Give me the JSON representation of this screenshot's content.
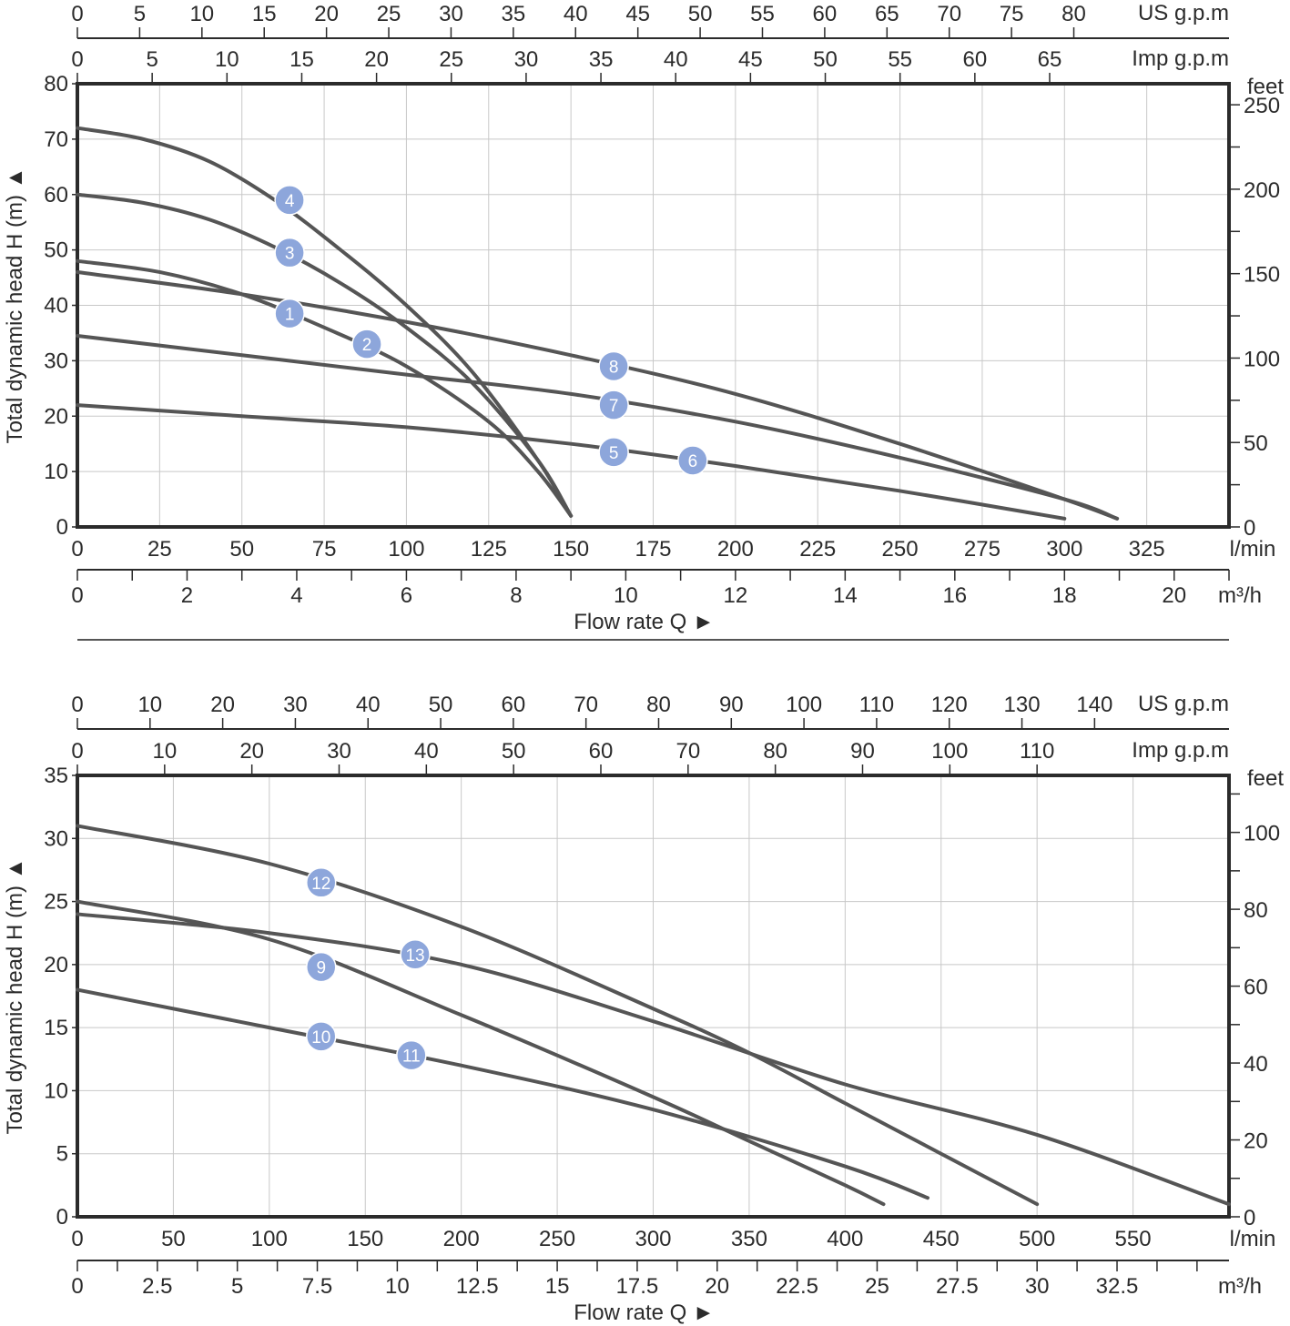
{
  "chart_data": [
    {
      "type": "line",
      "title": "",
      "x_label": "Flow rate Q ►",
      "y_label": "Total dynamic head H (m) ▲",
      "x_units": "l/min",
      "xlim": [
        0,
        350
      ],
      "ylim": [
        0,
        80
      ],
      "x_ticks": [
        0,
        25,
        50,
        75,
        100,
        125,
        150,
        175,
        200,
        225,
        250,
        275,
        300,
        325
      ],
      "y_ticks": [
        0,
        10,
        20,
        30,
        40,
        50,
        60,
        70,
        80
      ],
      "right_axis": {
        "label": "feet",
        "ticks": [
          0,
          50,
          100,
          150,
          200,
          250
        ]
      },
      "top_axis_us": {
        "label": "US g.p.m",
        "ticks": [
          0,
          5,
          10,
          15,
          20,
          25,
          30,
          35,
          40,
          45,
          50,
          55,
          60,
          65,
          70,
          75,
          80
        ]
      },
      "top_axis_imp": {
        "label": "Imp g.p.m",
        "ticks": [
          0,
          5,
          10,
          15,
          20,
          25,
          30,
          35,
          40,
          45,
          50,
          55,
          60,
          65
        ]
      },
      "bottom_axis_m3h": {
        "label": "m³/h",
        "ticks": [
          0,
          2,
          4,
          6,
          8,
          10,
          12,
          14,
          16,
          18,
          20
        ]
      },
      "series": [
        {
          "name": "4",
          "x": [
            0,
            20,
            40,
            60,
            80,
            100,
            120,
            140,
            150
          ],
          "y": [
            72,
            70,
            66,
            59,
            50,
            40,
            28,
            12,
            2
          ],
          "label_at": [
            64.5,
            59
          ]
        },
        {
          "name": "3",
          "x": [
            0,
            20,
            40,
            60,
            80,
            100,
            120,
            140,
            150
          ],
          "y": [
            60,
            58.5,
            55.5,
            50.5,
            44,
            36,
            26,
            12,
            2
          ],
          "label_at": [
            64.5,
            49.5
          ]
        },
        {
          "name": "1",
          "x": [
            0,
            25,
            50,
            75,
            100,
            125,
            140,
            150
          ],
          "y": [
            48,
            46,
            42,
            36,
            29,
            19,
            10,
            2
          ],
          "label_at": [
            64.5,
            38.5
          ]
        },
        {
          "name": "8",
          "x": [
            0,
            50,
            100,
            150,
            200,
            250,
            300,
            316
          ],
          "y": [
            46,
            42,
            37,
            31,
            24,
            15,
            5,
            1.5
          ],
          "label_at": [
            163,
            29
          ]
        },
        {
          "name": "7",
          "x": [
            0,
            50,
            100,
            150,
            200,
            250,
            300,
            316
          ],
          "y": [
            34.5,
            31,
            27.5,
            24,
            19,
            12.5,
            5,
            1.5
          ],
          "label_at": [
            163,
            22
          ]
        },
        {
          "name": "5",
          "x": [
            0,
            50,
            100,
            150,
            200,
            250,
            300
          ],
          "y": [
            22,
            20,
            18,
            15,
            11,
            6.5,
            1.5
          ],
          "label_at": [
            163,
            13.5
          ]
        }
      ],
      "extra_labels": [
        {
          "name": "2",
          "label_at": [
            88,
            33
          ]
        },
        {
          "name": "6",
          "label_at": [
            187,
            12
          ]
        }
      ]
    },
    {
      "type": "line",
      "title": "",
      "x_label": "Flow rate Q ►",
      "y_label": "Total dynamic head H (m) ▲",
      "x_units": "l/min",
      "xlim": [
        0,
        600
      ],
      "ylim": [
        0,
        35
      ],
      "x_ticks": [
        0,
        50,
        100,
        150,
        200,
        250,
        300,
        350,
        400,
        450,
        500,
        550
      ],
      "y_ticks": [
        0,
        5,
        10,
        15,
        20,
        25,
        30,
        35
      ],
      "right_axis": {
        "label": "feet",
        "ticks": [
          0,
          20,
          40,
          60,
          80,
          100
        ]
      },
      "top_axis_us": {
        "label": "US g.p.m",
        "ticks": [
          0,
          10,
          20,
          30,
          40,
          50,
          60,
          70,
          80,
          90,
          100,
          110,
          120,
          130,
          140
        ]
      },
      "top_axis_imp": {
        "label": "Imp g.p.m",
        "ticks": [
          0,
          10,
          20,
          30,
          40,
          50,
          60,
          70,
          80,
          90,
          100,
          110
        ]
      },
      "bottom_axis_m3h": {
        "label": "m³/h",
        "ticks": [
          0,
          2.5,
          5,
          7.5,
          10,
          12.5,
          15,
          17.5,
          20,
          22.5,
          25,
          27.5,
          30,
          32.5
        ]
      },
      "series": [
        {
          "name": "12",
          "x": [
            0,
            100,
            200,
            300,
            350,
            400,
            450,
            500
          ],
          "y": [
            31,
            28,
            23,
            16.5,
            13,
            9,
            5,
            1
          ]
        },
        {
          "name": "13",
          "x": [
            0,
            100,
            200,
            300,
            400,
            500,
            600
          ],
          "y": [
            24,
            22.5,
            20,
            15.5,
            10.5,
            6.5,
            1
          ]
        },
        {
          "name": "9",
          "x": [
            0,
            100,
            200,
            300,
            350,
            400,
            420
          ],
          "y": [
            25,
            22,
            16,
            9.5,
            6,
            2.5,
            1
          ]
        },
        {
          "name": "10",
          "x": [
            0,
            100,
            200,
            300,
            400,
            443
          ],
          "y": [
            18,
            15,
            12,
            8.5,
            4,
            1.5
          ]
        }
      ],
      "label_positions": [
        {
          "name": "12",
          "label_at": [
            127,
            26.5
          ]
        },
        {
          "name": "13",
          "label_at": [
            176,
            20.8
          ]
        },
        {
          "name": "9",
          "label_at": [
            127,
            19.8
          ]
        },
        {
          "name": "10",
          "label_at": [
            127,
            14.3
          ]
        },
        {
          "name": "11",
          "label_at": [
            174,
            12.8
          ]
        }
      ]
    }
  ],
  "colors": {
    "curve": "#555555",
    "frame": "#2b2b2b",
    "grid": "#c8c8c8",
    "badge": "#8da6db",
    "badge_text": "#ffffff"
  }
}
